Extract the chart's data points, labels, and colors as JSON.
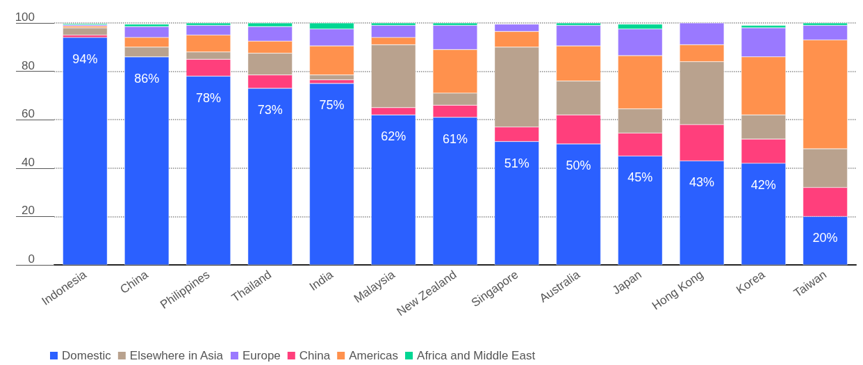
{
  "chart_data": {
    "type": "bar",
    "stacked": true,
    "categories": [
      "Indonesia",
      "China",
      "Philippines",
      "Thailand",
      "India",
      "Malaysia",
      "New Zealand",
      "Singapore",
      "Australia",
      "Japan",
      "Hong Kong",
      "Korea",
      "Taiwan"
    ],
    "series": [
      {
        "name": "Domestic",
        "color": "#2b60ff",
        "values": [
          94,
          86,
          78,
          73,
          75,
          62,
          61,
          51,
          50,
          45,
          43,
          42,
          20
        ],
        "value_labels": [
          "94%",
          "86%",
          "78%",
          "73%",
          "75%",
          "62%",
          "61%",
          "51%",
          "50%",
          "45%",
          "43%",
          "42%",
          "20%"
        ]
      },
      {
        "name": "China",
        "color": "#ff3f7c",
        "values": [
          1,
          0,
          7,
          5.5,
          1.5,
          3,
          5,
          6,
          12,
          9.5,
          15,
          10,
          12
        ]
      },
      {
        "name": "Elsewhere in Asia",
        "color": "#b9a28e",
        "values": [
          3,
          4,
          3,
          9,
          2,
          26,
          5,
          33,
          14,
          10,
          26,
          10,
          16
        ]
      },
      {
        "name": "Americas",
        "color": "#ff914d",
        "values": [
          0.7,
          4,
          7,
          5,
          12,
          3,
          18,
          6.5,
          14.5,
          22,
          7,
          24,
          45
        ]
      },
      {
        "name": "Europe",
        "color": "#9a79ff",
        "values": [
          0.5,
          4.5,
          4,
          6,
          7,
          5,
          10,
          3,
          8.5,
          11,
          9,
          12,
          6
        ]
      },
      {
        "name": "Africa and Middle East",
        "color": "#00d693",
        "values": [
          0.5,
          1,
          1,
          1.5,
          2.5,
          1,
          1,
          null,
          1,
          2,
          null,
          1,
          1
        ]
      }
    ],
    "ylim": [
      0,
      100
    ],
    "yticks": [
      0,
      20,
      40,
      60,
      80,
      100
    ],
    "grid": "y",
    "legend": "bottom"
  }
}
